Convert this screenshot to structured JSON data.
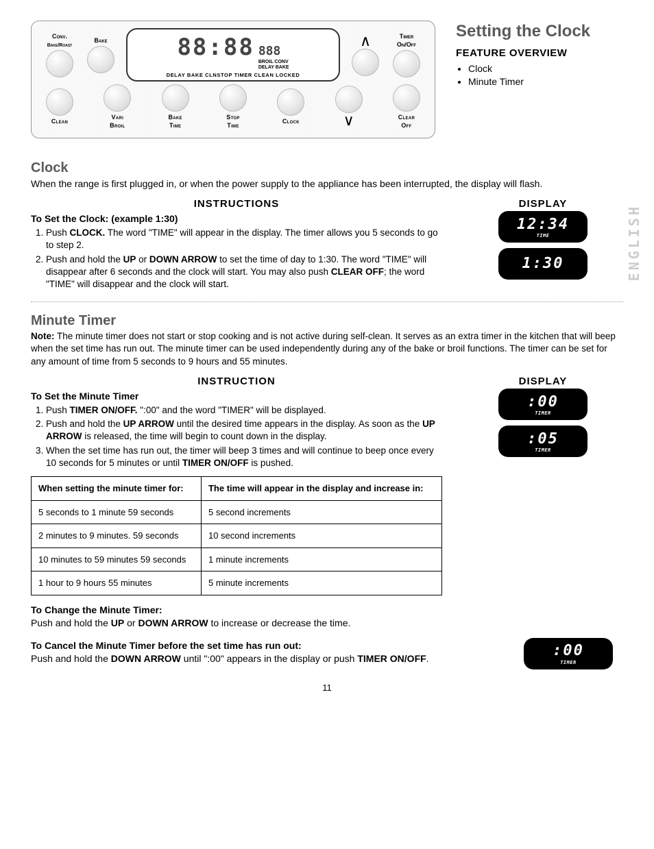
{
  "panel": {
    "top_left": [
      {
        "top": "Conv.",
        "bottom": "Bake/Roast"
      },
      {
        "top": "Bake",
        "bottom": ""
      }
    ],
    "top_right": [
      {
        "top": "",
        "label": "",
        "arrow": "up"
      },
      {
        "top": "Timer",
        "bottom": "On/Off"
      }
    ],
    "bottom": [
      {
        "label": "Clean"
      },
      {
        "label": "Vari",
        "label2": "Broil"
      },
      {
        "label": "Bake",
        "label2": "Time"
      },
      {
        "label": "Stop",
        "label2": "Time"
      },
      {
        "label": "Clock"
      },
      {
        "arrow": "down"
      },
      {
        "label": "Clear",
        "label2": "Off"
      }
    ],
    "lcd": {
      "main": "88:88",
      "side_main": "888",
      "side_lines": [
        "BROIL CONV",
        "DELAY BAKE"
      ],
      "bottom": "DELAY BAKE CLNSTOP TIMER CLEAN LOCKED"
    }
  },
  "overview": {
    "title": "Setting the Clock",
    "heading": "FEATURE OVERVIEW",
    "items": [
      "Clock",
      "Minute Timer"
    ]
  },
  "clock": {
    "title": "Clock",
    "intro": "When the range is first plugged in, or when the power supply to the appliance has been interrupted, the display will flash.",
    "instr_head": "INSTRUCTIONS",
    "disp_head": "DISPLAY",
    "sub": "To Set the Clock: (example 1:30)",
    "steps": [
      "Push <b>CLOCK.</b> The word \"TIME\" will appear in the display. The timer allows you 5 seconds to go to step 2.",
      "Push and hold the <b>UP</b> or <b>DOWN ARROW</b> to set the time of day to 1:30. The word \"TIME\" will disappear after 6 seconds and the clock will start. You may also push <b>CLEAR OFF</b>; the word \"TIME\" will disappear and the clock will start."
    ],
    "displays": [
      {
        "val": "12:34",
        "sub": "TIME"
      },
      {
        "val": "1:30",
        "sub": ""
      }
    ],
    "side": "ENGLISH"
  },
  "timer": {
    "title": "Minute Timer",
    "note": "<b>Note:</b> The minute timer does not start or stop cooking and is not active during self-clean. It serves as an extra timer in the kitchen that will beep when the set time has run out. The minute timer can be used independently during any of the bake or broil functions. The timer can be set for any amount of time from 5 seconds to 9 hours and 55 minutes.",
    "instr_head": "INSTRUCTION",
    "disp_head": "DISPLAY",
    "sub": "To Set the Minute Timer",
    "steps": [
      "Push <b>TIMER ON/OFF.</b> \":00\" and the word \"TIMER\" will be displayed.",
      "Push and hold the <b>UP ARROW</b> until the desired time appears in the display. As soon as the <b>UP ARROW</b> is released, the time will begin to count down in the display.",
      "When the set time has run out, the timer will beep 3 times and will continue to beep once every 10 seconds for 5 minutes or until <b>TIMER ON/OFF</b> is pushed."
    ],
    "displays": [
      {
        "val": ":00",
        "sub": "TIMER"
      },
      {
        "val": ":05",
        "sub": "TIMER"
      }
    ],
    "table": {
      "h1": "When setting the minute timer for:",
      "h2": "The time will appear in the display and increase in:",
      "rows": [
        [
          "5 seconds to 1 minute 59 seconds",
          "5 second increments"
        ],
        [
          "2 minutes to 9 minutes. 59 seconds",
          "10 second increments"
        ],
        [
          "10 minutes to 59 minutes 59 seconds",
          "1 minute increments"
        ],
        [
          "1 hour to 9 hours 55 minutes",
          "5 minute increments"
        ]
      ]
    },
    "change_head": "To Change the Minute Timer:",
    "change_text": "Push and hold the <b>UP</b> or <b>DOWN ARROW</b> to increase or decrease the time.",
    "cancel_head": "To Cancel the Minute Timer before the set time has run out:",
    "cancel_text": "Push and hold the <b>DOWN ARROW</b> until \":00\" appears in the display or push <b>TIMER ON/OFF</b>.",
    "cancel_display": {
      "val": ":00",
      "sub": "TIMER"
    }
  },
  "page": "11"
}
